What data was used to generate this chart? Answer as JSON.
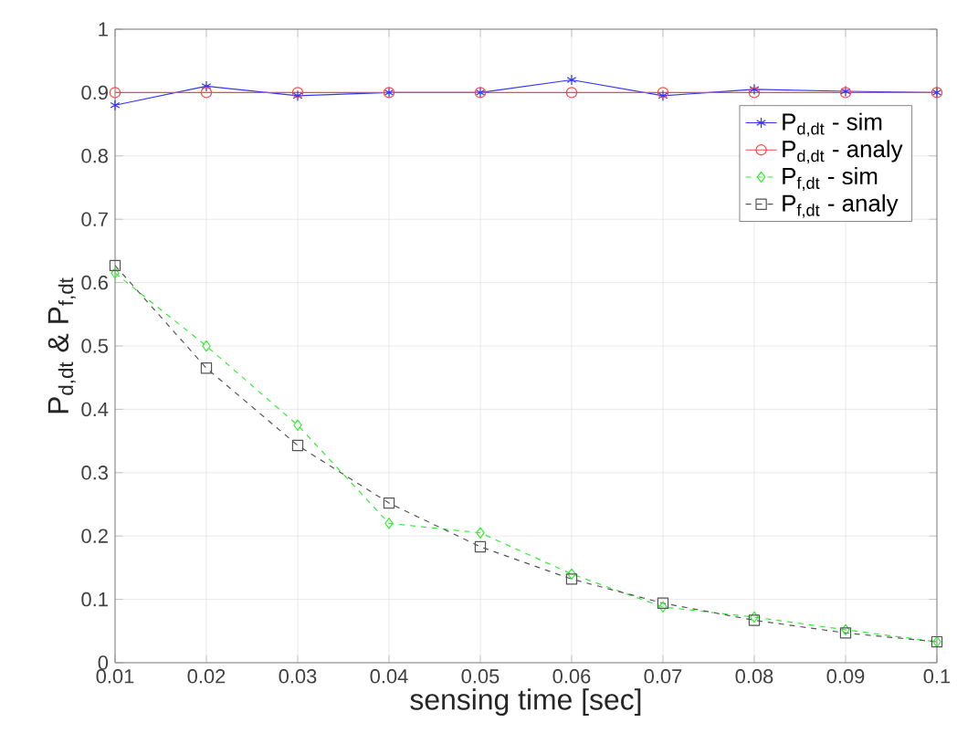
{
  "chart_data": {
    "type": "line",
    "xlabel": "sensing time [sec]",
    "ylabel": "P$_{d,dt}$ & P$_{f,dt}$",
    "x": [
      0.01,
      0.02,
      0.03,
      0.04,
      0.05,
      0.06,
      0.07,
      0.08,
      0.09,
      0.1
    ],
    "series": [
      {
        "name": "P$_{d,dt}$ - sim",
        "color": "#3333ff",
        "marker": "cross",
        "line_style": "solid",
        "values": [
          0.88,
          0.91,
          0.895,
          0.9,
          0.9,
          0.92,
          0.895,
          0.905,
          0.902,
          0.9
        ]
      },
      {
        "name": "P$_{d,dt}$ - analy",
        "color": "#ff4444",
        "marker": "circle",
        "line_style": "solid",
        "values": [
          0.9,
          0.9,
          0.9,
          0.9,
          0.9,
          0.9,
          0.9,
          0.9,
          0.9,
          0.9
        ]
      },
      {
        "name": "P$_{f,dt}$ - sim",
        "color": "#33ee33",
        "marker": "diamond",
        "line_style": "dashed",
        "values": [
          0.615,
          0.5,
          0.375,
          0.22,
          0.205,
          0.14,
          0.088,
          0.072,
          0.052,
          0.033
        ]
      },
      {
        "name": "P$_{f,dt}$ - analy",
        "color": "#555555",
        "marker": "square",
        "line_style": "dashed",
        "values": [
          0.627,
          0.465,
          0.343,
          0.252,
          0.183,
          0.132,
          0.094,
          0.067,
          0.047,
          0.033
        ]
      }
    ],
    "xlim": [
      0.01,
      0.1
    ],
    "ylim": [
      0,
      1
    ],
    "xticks": [
      0.01,
      0.02,
      0.03,
      0.04,
      0.05,
      0.06,
      0.07,
      0.08,
      0.09,
      0.1
    ],
    "yticks": [
      0,
      0.1,
      0.2,
      0.3,
      0.4,
      0.5,
      0.6,
      0.7,
      0.8,
      0.9,
      1
    ],
    "grid": true,
    "legend": "top right"
  }
}
